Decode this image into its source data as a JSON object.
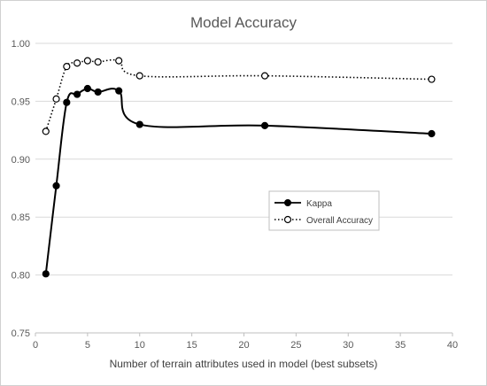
{
  "chart_data": {
    "type": "line",
    "title": "Model Accuracy",
    "xlabel": "Number of terrain attributes used in model (best subsets)",
    "ylabel": "",
    "xlim": [
      0,
      40
    ],
    "ylim": [
      0.75,
      1.0
    ],
    "xticks": [
      "0",
      "5",
      "10",
      "15",
      "20",
      "25",
      "30",
      "35",
      "40"
    ],
    "yticks": [
      "0.75",
      "0.80",
      "0.85",
      "0.90",
      "0.95",
      "1.00"
    ],
    "grid": "horizontal",
    "legend_position": "right-center",
    "series": [
      {
        "name": "Kappa",
        "style": "solid",
        "marker": "filled-circle",
        "color": "#000000",
        "x": [
          1,
          2,
          3,
          4,
          5,
          6,
          8,
          10,
          22,
          38
        ],
        "y": [
          0.801,
          0.877,
          0.949,
          0.956,
          0.961,
          0.958,
          0.959,
          0.93,
          0.929,
          0.922
        ]
      },
      {
        "name": "Overall Accuracy",
        "style": "dotted",
        "marker": "open-circle",
        "color": "#000000",
        "x": [
          1,
          2,
          3,
          4,
          5,
          6,
          8,
          10,
          22,
          38
        ],
        "y": [
          0.924,
          0.952,
          0.98,
          0.983,
          0.985,
          0.984,
          0.985,
          0.972,
          0.972,
          0.969
        ]
      }
    ]
  }
}
